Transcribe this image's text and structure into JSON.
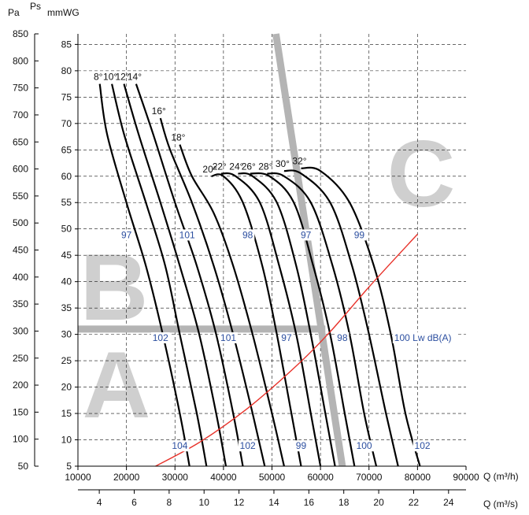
{
  "chart_data": {
    "type": "line",
    "title": "",
    "units": {
      "pa": "Pa",
      "ps": "Ps",
      "mmwg": "mmWG",
      "q_m3h": "Q (m³/h)",
      "q_m3s": "Q (m³/s)"
    },
    "x_m3h": {
      "ticks": [
        10000,
        20000,
        30000,
        40000,
        50000,
        60000,
        70000,
        80000,
        90000
      ],
      "labels": [
        "10000",
        "20000",
        "30000",
        "40000",
        "50000",
        "60000",
        "70000",
        "80000",
        "90000"
      ],
      "range": [
        10000,
        90000
      ]
    },
    "x_m3s": {
      "ticks": [
        4,
        6,
        8,
        10,
        12,
        14,
        16,
        18,
        20,
        22,
        24
      ],
      "labels": [
        "4",
        "6",
        "8",
        "10",
        "12",
        "14",
        "16",
        "18",
        "20",
        "22",
        "24"
      ]
    },
    "y_mmwg": {
      "ticks": [
        5,
        10,
        15,
        20,
        25,
        30,
        35,
        40,
        45,
        50,
        55,
        60,
        65,
        70,
        75,
        80,
        85
      ],
      "labels": [
        "5",
        "10",
        "15",
        "20",
        "25",
        "30",
        "35",
        "40",
        "45",
        "50",
        "55",
        "60",
        "65",
        "70",
        "75",
        "80",
        "85"
      ],
      "range": [
        5,
        87
      ]
    },
    "y_pa": {
      "ticks": [
        50,
        100,
        150,
        200,
        250,
        300,
        350,
        400,
        450,
        500,
        550,
        600,
        650,
        700,
        750,
        800,
        850
      ],
      "labels": [
        "50",
        "100",
        "150",
        "200",
        "250",
        "300",
        "350",
        "400",
        "450",
        "500",
        "550",
        "600",
        "650",
        "700",
        "750",
        "800",
        "850"
      ]
    },
    "zones": [
      "A",
      "B",
      "C"
    ],
    "zone_boundaries": {
      "vertical_line": [
        [
          50800,
          87
        ],
        [
          64500,
          5
        ]
      ],
      "horizontal_line": [
        [
          10000,
          31
        ],
        [
          61000,
          31
        ]
      ]
    },
    "system_curve": {
      "color": "#e8322a",
      "points": [
        [
          26000,
          5
        ],
        [
          35000,
          9.5
        ],
        [
          45000,
          16
        ],
        [
          55000,
          24
        ],
        [
          62000,
          30.5
        ],
        [
          70000,
          39
        ],
        [
          80000,
          49
        ]
      ]
    },
    "series": [
      {
        "name": "8°",
        "points": [
          [
            14500,
            77.5
          ],
          [
            16000,
            68
          ],
          [
            20000,
            55
          ],
          [
            24000,
            43
          ],
          [
            27500,
            30
          ],
          [
            31000,
            15
          ],
          [
            33000,
            5
          ]
        ]
      },
      {
        "name": "10°",
        "points": [
          [
            17000,
            77.5
          ],
          [
            19500,
            68
          ],
          [
            24000,
            55
          ],
          [
            28000,
            43
          ],
          [
            31000,
            30
          ],
          [
            34500,
            15
          ],
          [
            36500,
            5
          ]
        ]
      },
      {
        "name": "12°",
        "points": [
          [
            19500,
            77.5
          ],
          [
            22500,
            68
          ],
          [
            27000,
            55
          ],
          [
            31000,
            43
          ],
          [
            35000,
            30
          ],
          [
            38500,
            15
          ],
          [
            40500,
            5
          ]
        ]
      },
      {
        "name": "14°",
        "points": [
          [
            22000,
            77.5
          ],
          [
            25500,
            68
          ],
          [
            30000,
            55
          ],
          [
            34500,
            43
          ],
          [
            38500,
            30
          ],
          [
            42000,
            15
          ],
          [
            44000,
            5
          ]
        ]
      },
      {
        "name": "16°",
        "points": [
          [
            27000,
            71
          ],
          [
            29000,
            65
          ],
          [
            33500,
            55
          ],
          [
            38000,
            43
          ],
          [
            42000,
            30
          ],
          [
            46000,
            15
          ],
          [
            48500,
            5
          ]
        ]
      },
      {
        "name": "18°",
        "points": [
          [
            31000,
            66
          ],
          [
            33500,
            60
          ],
          [
            38000,
            53
          ],
          [
            42000,
            43
          ],
          [
            46000,
            30
          ],
          [
            50000,
            15
          ],
          [
            52500,
            5
          ]
        ]
      },
      {
        "name": "20°",
        "points": [
          [
            37500,
            60
          ],
          [
            40000,
            60
          ],
          [
            44000,
            55
          ],
          [
            48000,
            43
          ],
          [
            51000,
            30
          ],
          [
            54000,
            15
          ],
          [
            56000,
            5
          ]
        ]
      },
      {
        "name": "22°",
        "points": [
          [
            39500,
            60.5
          ],
          [
            42500,
            60
          ],
          [
            47500,
            55
          ],
          [
            51500,
            43
          ],
          [
            55000,
            30
          ],
          [
            58000,
            15
          ],
          [
            60000,
            5
          ]
        ]
      },
      {
        "name": "24°",
        "points": [
          [
            43000,
            60.5
          ],
          [
            46000,
            60
          ],
          [
            51000,
            55
          ],
          [
            55000,
            43
          ],
          [
            58000,
            30
          ],
          [
            61000,
            15
          ],
          [
            63000,
            5
          ]
        ]
      },
      {
        "name": "26°",
        "points": [
          [
            45500,
            60.5
          ],
          [
            49500,
            60
          ],
          [
            54500,
            55
          ],
          [
            58500,
            43
          ],
          [
            62000,
            30
          ],
          [
            65000,
            15
          ],
          [
            67000,
            5
          ]
        ]
      },
      {
        "name": "28°",
        "points": [
          [
            49000,
            60.5
          ],
          [
            52500,
            60
          ],
          [
            58000,
            55
          ],
          [
            62500,
            43
          ],
          [
            66000,
            30
          ],
          [
            69000,
            15
          ],
          [
            71500,
            5
          ]
        ]
      },
      {
        "name": "30°",
        "points": [
          [
            52500,
            61
          ],
          [
            56000,
            60.5
          ],
          [
            62000,
            55
          ],
          [
            66500,
            43
          ],
          [
            70000,
            30
          ],
          [
            73500,
            15
          ],
          [
            76000,
            5
          ]
        ]
      },
      {
        "name": "32°",
        "points": [
          [
            56000,
            61.5
          ],
          [
            60000,
            61
          ],
          [
            66000,
            55
          ],
          [
            71000,
            43
          ],
          [
            74500,
            30
          ],
          [
            77500,
            15
          ],
          [
            80500,
            5
          ]
        ]
      }
    ],
    "sound_labels": [
      {
        "text": "97",
        "x": 20000,
        "y": 49
      },
      {
        "text": "101",
        "x": 32500,
        "y": 49
      },
      {
        "text": "98",
        "x": 45000,
        "y": 49
      },
      {
        "text": "97",
        "x": 57000,
        "y": 49
      },
      {
        "text": "99",
        "x": 68000,
        "y": 49
      },
      {
        "text": "102",
        "x": 27000,
        "y": 29.5
      },
      {
        "text": "101",
        "x": 41000,
        "y": 29.5
      },
      {
        "text": "97",
        "x": 53000,
        "y": 29.5
      },
      {
        "text": "98",
        "x": 64500,
        "y": 29.5
      },
      {
        "text": "100 Lw dB(A)",
        "x": 76500,
        "y": 29.5
      },
      {
        "text": "104",
        "x": 31000,
        "y": 9
      },
      {
        "text": "102",
        "x": 45000,
        "y": 9
      },
      {
        "text": "99",
        "x": 56000,
        "y": 9
      },
      {
        "text": "100",
        "x": 69000,
        "y": 9
      },
      {
        "text": "102",
        "x": 81000,
        "y": 9
      }
    ]
  }
}
